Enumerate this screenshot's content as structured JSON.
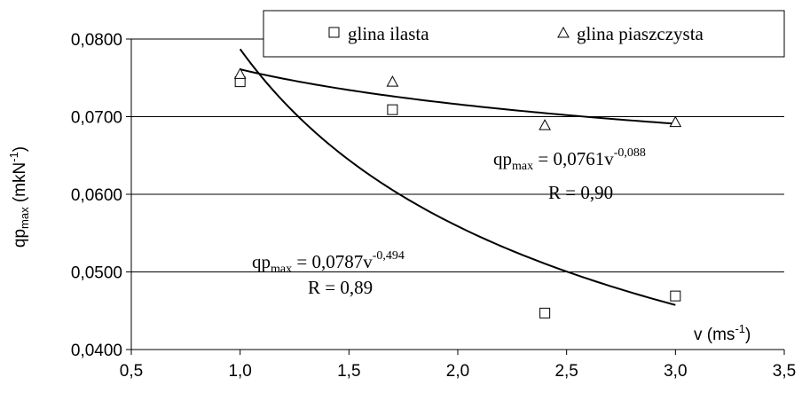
{
  "chart_data": {
    "type": "scatter",
    "xlabel": {
      "base": "v (ms",
      "sup": "-1",
      "tail": ")"
    },
    "ylabel": {
      "base": "qp",
      "sub": "max",
      "tail": " (mkN",
      "sup": "-1",
      "close": ")"
    },
    "xlim": [
      0.5,
      3.5
    ],
    "ylim": [
      0.04,
      0.08
    ],
    "x_ticks": [
      0.5,
      1.0,
      1.5,
      2.0,
      2.5,
      3.0,
      3.5
    ],
    "x_tick_labels": [
      "0,5",
      "1,0",
      "1,5",
      "2,0",
      "2,5",
      "3,0",
      "3,5"
    ],
    "y_ticks": [
      0.04,
      0.05,
      0.06,
      0.07,
      0.08
    ],
    "y_tick_labels": [
      "0,0400",
      "0,0500",
      "0,0600",
      "0,0700",
      "0,0800"
    ],
    "grid": "horizontal",
    "legend_position": "top-right",
    "series": [
      {
        "name": "glina ilasta",
        "marker": "square",
        "x": [
          1.0,
          1.7,
          2.4,
          3.0
        ],
        "y": [
          0.0745,
          0.0709,
          0.0447,
          0.0469
        ],
        "trend": {
          "a": 0.0787,
          "b": -0.494,
          "xrange": [
            1.0,
            3.0
          ]
        },
        "equation": {
          "lhs": "qp",
          "sub": "max",
          "mid": " = 0,0787v",
          "sup": "-0,494"
        },
        "r_label": "R = 0,89"
      },
      {
        "name": "glina piaszczysta",
        "marker": "triangle",
        "x": [
          1.0,
          1.7,
          2.4,
          3.0
        ],
        "y": [
          0.0755,
          0.0745,
          0.0689,
          0.0693
        ],
        "trend": {
          "a": 0.0761,
          "b": -0.088,
          "xrange": [
            1.0,
            3.0
          ]
        },
        "equation": {
          "lhs": "qp",
          "sub": "max",
          "mid": " = 0,0761v",
          "sup": "-0,088"
        },
        "r_label": "R = 0,90"
      }
    ]
  }
}
